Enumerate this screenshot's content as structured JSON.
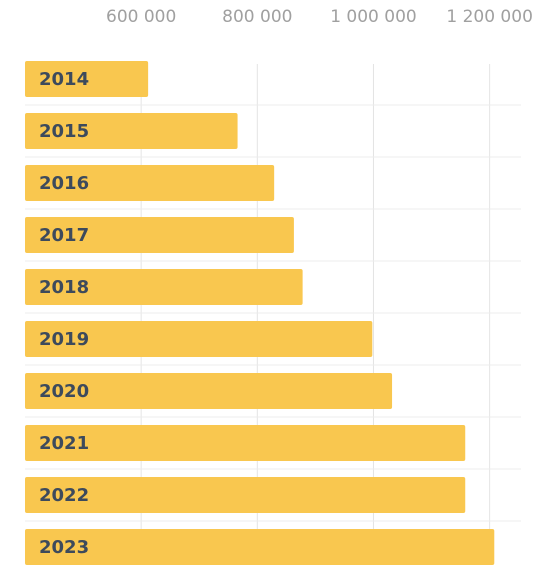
{
  "chart_data": {
    "type": "bar",
    "orientation": "horizontal",
    "categories": [
      "2014",
      "2015",
      "2016",
      "2017",
      "2018",
      "2019",
      "2020",
      "2021",
      "2022",
      "2023"
    ],
    "values": [
      612000,
      766000,
      829000,
      863000,
      878000,
      998000,
      1032000,
      1158000,
      1158000,
      1208000
    ],
    "xlim": [
      400000,
      1254000
    ],
    "x_ticks": [
      600000,
      800000,
      1000000,
      1200000
    ],
    "x_tick_labels": [
      "600 000",
      "800 000",
      "1 000 000",
      "1 200 000"
    ],
    "axis_position": "top",
    "grid": true,
    "bar_color": "#f9c74f",
    "label_color": "#3d4a5c",
    "tick_color": "#a0a0a0"
  }
}
